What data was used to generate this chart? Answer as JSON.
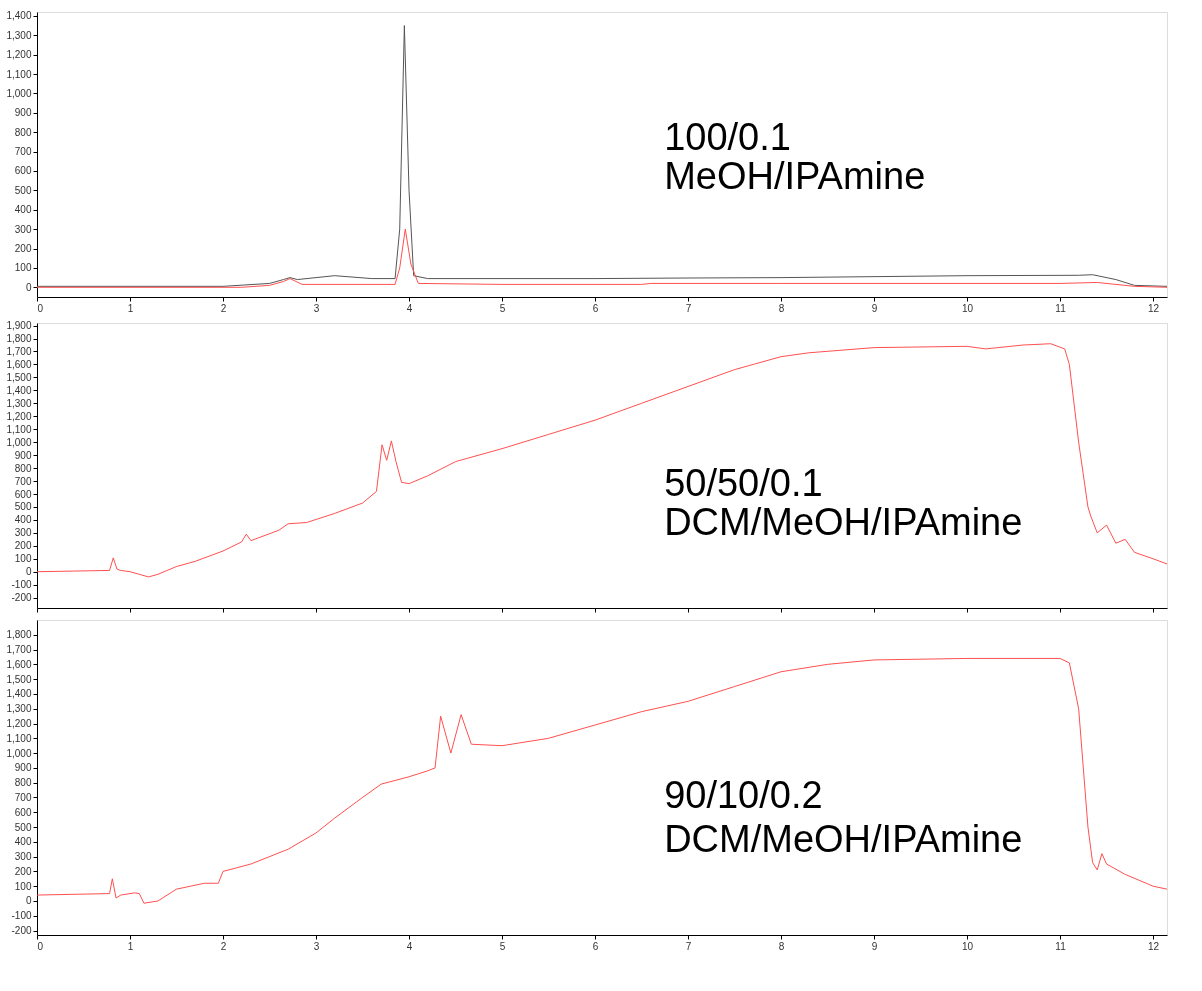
{
  "chart_data": [
    {
      "type": "line",
      "xlim": [
        0,
        12.15
      ],
      "ylim": [
        -50,
        1420
      ],
      "xticks": [
        0,
        1,
        2,
        3,
        4,
        5,
        6,
        7,
        8,
        9,
        10,
        11,
        12
      ],
      "yticks": [
        0,
        100,
        200,
        300,
        400,
        500,
        600,
        700,
        800,
        900,
        {
          "value": 1000,
          "label": "1,000"
        },
        {
          "value": 1100,
          "label": "1,100"
        },
        {
          "value": 1200,
          "label": "1,200"
        },
        {
          "value": 1300,
          "label": "1,300"
        },
        {
          "value": 1400,
          "label": "1,400"
        }
      ],
      "grid": false,
      "legend": false,
      "marker": "none",
      "line_style": "solid",
      "annotations": [
        "100/0.1",
        "MeOH/IPAmine"
      ],
      "series": [
        {
          "color": "#555555",
          "x": [
            0,
            1,
            2,
            2.5,
            2.65,
            2.72,
            2.8,
            3.0,
            3.2,
            3.6,
            3.85,
            3.9,
            3.95,
            4.0,
            4.05,
            4.2,
            5,
            6,
            7,
            8,
            9,
            10,
            11.2,
            11.35,
            11.6,
            11.8,
            12.15
          ],
          "values": [
            5,
            5,
            5,
            20,
            40,
            50,
            40,
            50,
            60,
            45,
            45,
            300,
            1350,
            500,
            60,
            45,
            45,
            45,
            48,
            50,
            55,
            60,
            62,
            65,
            40,
            10,
            5
          ]
        },
        {
          "color": "#ff5050",
          "x": [
            0,
            1,
            2.2,
            2.5,
            2.65,
            2.72,
            2.85,
            3.0,
            3.85,
            3.9,
            3.96,
            4.02,
            4.1,
            5,
            6.5,
            6.6,
            8,
            11,
            11.4,
            11.8,
            12.15
          ],
          "values": [
            0,
            0,
            0,
            10,
            30,
            45,
            15,
            15,
            15,
            100,
            300,
            120,
            20,
            15,
            15,
            20,
            20,
            20,
            25,
            5,
            0
          ]
        }
      ]
    },
    {
      "type": "line",
      "xlim": [
        0,
        12.15
      ],
      "ylim": [
        -280,
        1920
      ],
      "xticks": [
        0,
        1,
        2,
        3,
        4,
        5,
        6,
        7,
        8,
        9,
        10,
        11,
        12
      ],
      "yticks": [
        -200,
        -100,
        0,
        100,
        200,
        300,
        400,
        500,
        600,
        700,
        800,
        900,
        {
          "value": 1000,
          "label": "1,000"
        },
        {
          "value": 1100,
          "label": "1,100"
        },
        {
          "value": 1200,
          "label": "1,200"
        },
        {
          "value": 1300,
          "label": "1,300"
        },
        {
          "value": 1400,
          "label": "1,400"
        },
        {
          "value": 1500,
          "label": "1,500"
        },
        {
          "value": 1600,
          "label": "1,600"
        },
        {
          "value": 1700,
          "label": "1,700"
        },
        {
          "value": 1800,
          "label": "1,800"
        },
        {
          "value": 1900,
          "label": "1,900"
        }
      ],
      "tick_labels": "y",
      "grid": false,
      "legend": false,
      "marker": "none",
      "line_style": "solid",
      "annotations": [
        "50/50/0.1",
        "DCM/MeOH/IPAmine"
      ],
      "series": [
        {
          "color": "#ff5050",
          "x": [
            0,
            0.78,
            0.82,
            0.86,
            0.9,
            1.0,
            1.1,
            1.2,
            1.3,
            1.5,
            1.7,
            2.0,
            2.2,
            2.25,
            2.3,
            2.6,
            2.7,
            2.9,
            3.2,
            3.5,
            3.65,
            3.71,
            3.76,
            3.81,
            3.86,
            3.92,
            4.0,
            4.2,
            4.5,
            5,
            5.5,
            6,
            6.5,
            7,
            7.5,
            8,
            8.3,
            9,
            10,
            10.2,
            10.6,
            10.9,
            11.05,
            11.1,
            11.2,
            11.3,
            11.33,
            11.4,
            11.5,
            11.6,
            11.7,
            11.8,
            12,
            12.15
          ],
          "values": [
            0,
            10,
            107,
            20,
            10,
            0,
            -20,
            -40,
            -20,
            40,
            80,
            160,
            230,
            290,
            240,
            320,
            370,
            380,
            450,
            530,
            620,
            980,
            860,
            1010,
            850,
            690,
            680,
            740,
            850,
            950,
            1060,
            1170,
            1300,
            1430,
            1560,
            1660,
            1690,
            1730,
            1740,
            1720,
            1750,
            1760,
            1720,
            1600,
            1000,
            500,
            430,
            300,
            360,
            220,
            250,
            150,
            100,
            60
          ]
        }
      ]
    },
    {
      "type": "line",
      "xlim": [
        0,
        12.15
      ],
      "ylim": [
        -230,
        1900
      ],
      "xticks": [
        0,
        1,
        2,
        3,
        4,
        5,
        6,
        7,
        8,
        9,
        10,
        11,
        12
      ],
      "yticks": [
        -200,
        -100,
        0,
        100,
        200,
        300,
        400,
        500,
        600,
        700,
        800,
        900,
        {
          "value": 1000,
          "label": "1,000"
        },
        {
          "value": 1100,
          "label": "1,100"
        },
        {
          "value": 1200,
          "label": "1,200"
        },
        {
          "value": 1300,
          "label": "1,300"
        },
        {
          "value": 1400,
          "label": "1,400"
        },
        {
          "value": 1500,
          "label": "1,500"
        },
        {
          "value": 1600,
          "label": "1,600"
        },
        {
          "value": 1700,
          "label": "1,700"
        },
        {
          "value": 1800,
          "label": "1,800"
        }
      ],
      "grid": false,
      "legend": false,
      "marker": "none",
      "line_style": "solid",
      "annotations": [
        "90/10/0.2",
        "DCM/MeOH/IPAmine"
      ],
      "series": [
        {
          "color": "#ff5050",
          "x": [
            0,
            0.78,
            0.81,
            0.85,
            0.9,
            1.05,
            1.1,
            1.15,
            1.3,
            1.5,
            1.8,
            1.95,
            2.0,
            2.3,
            2.7,
            3.0,
            3.2,
            3.5,
            3.7,
            4.0,
            4.2,
            4.28,
            4.34,
            4.45,
            4.56,
            4.67,
            5,
            5.5,
            6,
            6.5,
            7,
            7.5,
            8,
            8.5,
            9,
            10,
            11,
            11.1,
            11.2,
            11.3,
            11.35,
            11.4,
            11.45,
            11.5,
            11.7,
            12,
            12.15
          ],
          "values": [
            40,
            50,
            150,
            20,
            40,
            55,
            50,
            -15,
            0,
            80,
            120,
            120,
            200,
            250,
            350,
            460,
            560,
            700,
            790,
            840,
            880,
            900,
            1250,
            1000,
            1260,
            1060,
            1050,
            1100,
            1190,
            1280,
            1350,
            1450,
            1550,
            1600,
            1630,
            1640,
            1640,
            1610,
            1300,
            500,
            260,
            210,
            320,
            250,
            180,
            100,
            80
          ]
        }
      ]
    }
  ]
}
